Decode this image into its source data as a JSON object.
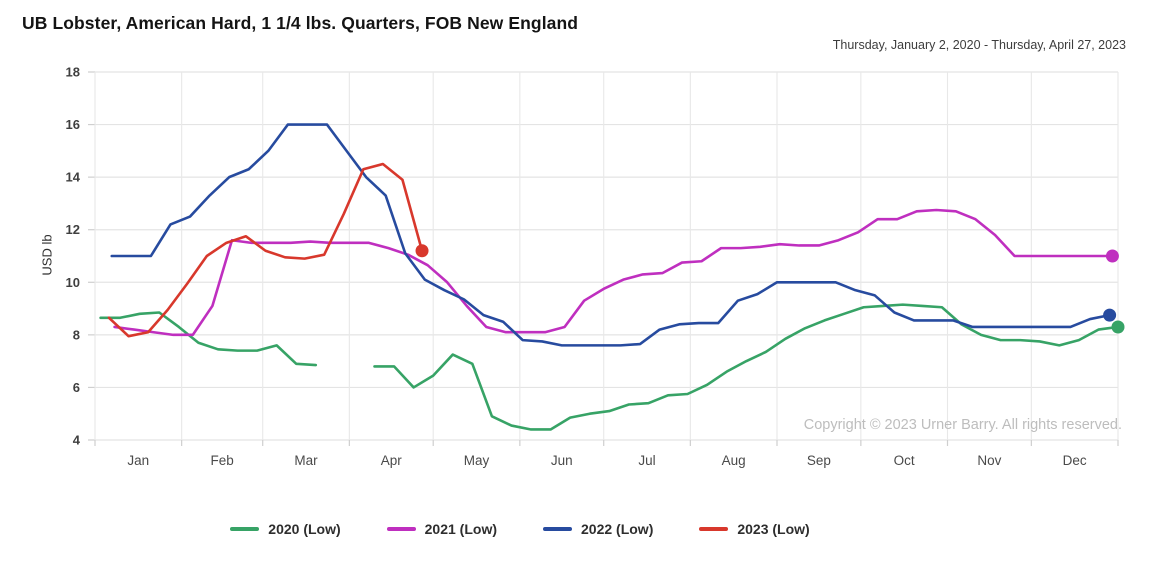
{
  "header": {
    "title": "UB Lobster, American Hard, 1 1/4 lbs. Quarters, FOB New England",
    "date_range": "Thursday, January 2, 2020 - Thursday, April 27, 2023"
  },
  "chart_data": {
    "type": "line",
    "title": "UB Lobster, American Hard, 1 1/4 lbs. Quarters, FOB New England",
    "subtitle": "Thursday, January 2, 2020 - Thursday, April 27, 2023",
    "ylabel": "USD lb",
    "xlabel": "",
    "ylim": [
      4,
      18
    ],
    "y_ticks": [
      18,
      16,
      14,
      12,
      10,
      8,
      6,
      4
    ],
    "x_tick_labels": [
      "Jan",
      "Feb",
      "Mar",
      "Apr",
      "May",
      "Jun",
      "Jul",
      "Aug",
      "Sep",
      "Oct",
      "Nov",
      "Dec"
    ],
    "grid": true,
    "legend_position": "bottom",
    "x_unit": "weekly Thursday observations across one calendar year",
    "copyright": "Copyright © 2023 Urner Barry. All rights reserved.",
    "end_markers": true,
    "series": [
      {
        "name": "2020 (Low)",
        "color": "#37a366",
        "first_date": "Thursday, January 2, 2020",
        "start_day": 2,
        "values": [
          8.65,
          8.65,
          8.8,
          8.85,
          8.3,
          7.7,
          7.45,
          7.4,
          7.4,
          7.6,
          6.9,
          6.85,
          null,
          null,
          6.8,
          6.8,
          6.0,
          6.45,
          7.25,
          6.9,
          4.9,
          4.55,
          4.4,
          4.4,
          4.85,
          5.0,
          5.1,
          5.35,
          5.4,
          5.7,
          5.75,
          6.1,
          6.6,
          7.0,
          7.35,
          7.85,
          8.25,
          8.55,
          8.8,
          9.05,
          9.1,
          9.15,
          9.1,
          9.05,
          8.4,
          8.0,
          7.8,
          7.8,
          7.75,
          7.6,
          7.8,
          8.2,
          8.3
        ]
      },
      {
        "name": "2021 (Low)",
        "color": "#bf2fbf",
        "first_date": "Thursday, January 7, 2021",
        "start_day": 7,
        "values": [
          8.3,
          8.2,
          8.1,
          8.0,
          8.0,
          9.1,
          11.6,
          11.5,
          11.5,
          11.5,
          11.55,
          11.5,
          11.5,
          11.5,
          11.3,
          11.05,
          10.65,
          10.0,
          9.1,
          8.3,
          8.1,
          8.1,
          8.1,
          8.3,
          9.3,
          9.75,
          10.1,
          10.3,
          10.35,
          10.75,
          10.8,
          11.3,
          11.3,
          11.35,
          11.45,
          11.4,
          11.4,
          11.6,
          11.9,
          12.4,
          12.4,
          12.7,
          12.75,
          12.7,
          12.4,
          11.8,
          11.0,
          11.0,
          11.0,
          11.0,
          11.0,
          11.0
        ]
      },
      {
        "name": "2022 (Low)",
        "color": "#274b9f",
        "first_date": "Thursday, January 6, 2022",
        "start_day": 6,
        "values": [
          11.0,
          11.0,
          11.0,
          12.2,
          12.5,
          13.3,
          14.0,
          14.3,
          15.0,
          16.0,
          16.0,
          16.0,
          15.0,
          14.0,
          13.3,
          11.1,
          10.1,
          9.7,
          9.35,
          8.75,
          8.5,
          7.8,
          7.75,
          7.6,
          7.6,
          7.6,
          7.6,
          7.65,
          8.2,
          8.4,
          8.45,
          8.45,
          9.3,
          9.55,
          10.0,
          10.0,
          10.0,
          10.0,
          9.7,
          9.5,
          8.85,
          8.55,
          8.55,
          8.55,
          8.3,
          8.3,
          8.3,
          8.3,
          8.3,
          8.3,
          8.6,
          8.75
        ]
      },
      {
        "name": "2023 (Low)",
        "color": "#d8382c",
        "first_date": "Thursday, January 5, 2023",
        "start_day": 5,
        "values": [
          8.65,
          7.95,
          8.1,
          8.95,
          9.95,
          11.0,
          11.5,
          11.75,
          11.2,
          10.95,
          10.9,
          11.05,
          12.6,
          14.3,
          14.5,
          13.9,
          11.2
        ]
      }
    ]
  }
}
